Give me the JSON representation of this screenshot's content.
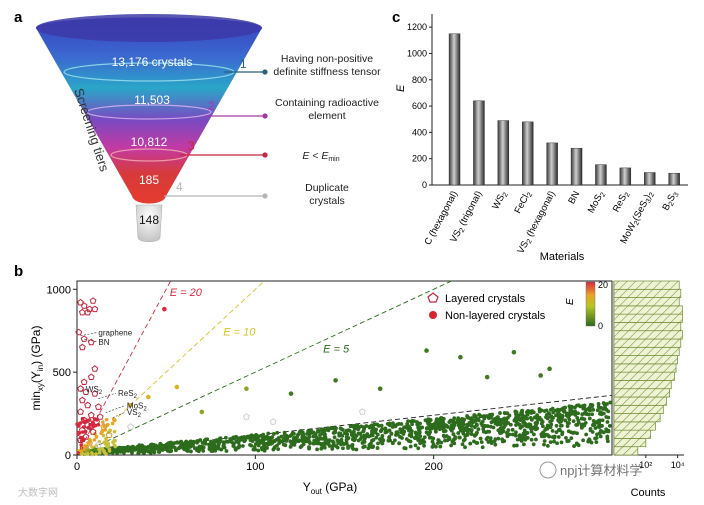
{
  "panel_labels": {
    "a": "a",
    "b": "b",
    "c": "c"
  },
  "funnel": {
    "axis_label": "Screening tiers",
    "tiers": [
      {
        "count": "13,176 crystals",
        "num": "1",
        "desc": [
          "Having non-positive",
          "definite stiffness tensor"
        ],
        "color": "#2c5f7c"
      },
      {
        "count": "11,503",
        "num": "2",
        "desc": [
          "Containing radioactive",
          "element"
        ],
        "color": "#a23aa8"
      },
      {
        "count": "10,812",
        "num": "3",
        "desc": [
          "E < E",
          "min"
        ],
        "color": "#c3273d"
      },
      {
        "count": "185",
        "num": "4",
        "desc": [
          "Duplicate",
          "crystals"
        ],
        "color": "#b5b5b5"
      }
    ],
    "final_count": "148"
  },
  "chart_data": [
    {
      "type": "bar",
      "panel": "c",
      "categories": [
        "C (hexagonal)",
        "VS2 (trigonal)",
        "WS2",
        "FeCl2",
        "VS2 (hexagonal)",
        "BN",
        "MoS2",
        "ReS2",
        "MoW2(SeS3)2",
        "B2S3"
      ],
      "category_labels": [
        {
          "main": "C (hexagonal)"
        },
        {
          "main": "VS",
          "sub": "2",
          "rest": " (trigonal)"
        },
        {
          "main": "WS",
          "sub": "2"
        },
        {
          "main": "FeCl",
          "sub": "2"
        },
        {
          "main": "VS",
          "sub": "2",
          "rest": " (hexagonal)"
        },
        {
          "main": "BN"
        },
        {
          "main": "MoS",
          "sub": "2"
        },
        {
          "main": "ReS",
          "sub": "2"
        },
        {
          "main": "MoW",
          "sub": "2",
          "rest": "(SeS",
          "sub2": "3",
          "rest2": ")",
          "sub3": "2"
        },
        {
          "main": "B",
          "sub": "2",
          "rest": "S",
          "sub2": "3"
        }
      ],
      "values": [
        1150,
        640,
        490,
        480,
        320,
        280,
        155,
        130,
        95,
        90
      ],
      "xlabel": "Materials",
      "ylabel": "E",
      "ylim": [
        0,
        1300
      ],
      "yticks": [
        0,
        200,
        400,
        600,
        800,
        1000,
        1200
      ]
    },
    {
      "type": "scatter",
      "panel": "b",
      "xlabel_main": "Y",
      "xlabel_sub": "out",
      "xlabel_rest": " (GPa)",
      "ylabel_main": "min",
      "ylabel_sub1": "xy",
      "ylabel_mid": "(Y",
      "ylabel_sub2": "in",
      "ylabel_rest": ") (GPa)",
      "xlim": [
        0,
        300
      ],
      "ylim": [
        0,
        1050
      ],
      "xticks": [
        0,
        100,
        200
      ],
      "yticks": [
        0,
        500,
        1000
      ],
      "reference_lines": [
        {
          "label": "E = 20",
          "slope": 20,
          "color": "#d8293f"
        },
        {
          "label": "E = 10",
          "slope": 10,
          "color": "#d6c224"
        },
        {
          "label": "E = 5",
          "slope": 5,
          "color": "#2d6b1d"
        },
        {
          "label": "",
          "slope": 1.2,
          "color": "#222222"
        }
      ],
      "legend": {
        "layered": "Layered crystals",
        "nonlayered": "Non-layered crystals"
      },
      "colorbar": {
        "label": "E",
        "ticks": [
          "20",
          "0"
        ]
      },
      "annotations": [
        "graphene",
        "BN",
        "WS",
        "ReS",
        "MoS",
        "VS"
      ],
      "annotation_subs": [
        "",
        "",
        "2",
        "2",
        "2",
        "2"
      ],
      "layered_points": [
        {
          "x": 2,
          "y": 920
        },
        {
          "x": 4,
          "y": 900
        },
        {
          "x": 6,
          "y": 860
        },
        {
          "x": 7,
          "y": 880
        },
        {
          "x": 3,
          "y": 860
        },
        {
          "x": 9,
          "y": 930
        },
        {
          "x": 10,
          "y": 880
        },
        {
          "x": 1,
          "y": 740
        },
        {
          "x": 4,
          "y": 700
        },
        {
          "x": 8,
          "y": 680
        },
        {
          "x": 3,
          "y": 650
        },
        {
          "x": 10,
          "y": 520
        },
        {
          "x": 8,
          "y": 470
        },
        {
          "x": 4,
          "y": 440
        },
        {
          "x": 2,
          "y": 400
        },
        {
          "x": 5,
          "y": 380
        },
        {
          "x": 10,
          "y": 370
        },
        {
          "x": 3,
          "y": 330
        },
        {
          "x": 6,
          "y": 300
        },
        {
          "x": 12,
          "y": 290
        },
        {
          "x": 2,
          "y": 260
        },
        {
          "x": 8,
          "y": 240
        },
        {
          "x": 13,
          "y": 230
        },
        {
          "x": 4,
          "y": 210
        },
        {
          "x": 11,
          "y": 200
        },
        {
          "x": 6,
          "y": 180
        },
        {
          "x": 15,
          "y": 170
        },
        {
          "x": 3,
          "y": 150
        },
        {
          "x": 9,
          "y": 140
        },
        {
          "x": 5,
          "y": 110
        },
        {
          "x": 2,
          "y": 90
        },
        {
          "x": 7,
          "y": 70
        },
        {
          "x": 18,
          "y": 120
        },
        {
          "x": 12,
          "y": 60
        },
        {
          "x": 4,
          "y": 40
        },
        {
          "x": 30,
          "y": 170
        },
        {
          "x": 95,
          "y": 230
        },
        {
          "x": 160,
          "y": 260
        },
        {
          "x": 110,
          "y": 200
        }
      ],
      "nonlayered_points": [
        {
          "x": 49,
          "y": 880,
          "e": 18
        },
        {
          "x": 56,
          "y": 410,
          "e": 9
        },
        {
          "x": 145,
          "y": 450,
          "e": 4
        },
        {
          "x": 196,
          "y": 630,
          "e": 4
        },
        {
          "x": 215,
          "y": 590,
          "e": 3
        },
        {
          "x": 245,
          "y": 620,
          "e": 3
        },
        {
          "x": 265,
          "y": 520,
          "e": 2
        },
        {
          "x": 260,
          "y": 480,
          "e": 2
        },
        {
          "x": 230,
          "y": 470,
          "e": 2
        },
        {
          "x": 120,
          "y": 370,
          "e": 4
        },
        {
          "x": 95,
          "y": 400,
          "e": 5
        },
        {
          "x": 170,
          "y": 400,
          "e": 3
        },
        {
          "x": 40,
          "y": 350,
          "e": 9
        },
        {
          "x": 30,
          "y": 300,
          "e": 11
        },
        {
          "x": 70,
          "y": 260,
          "e": 5
        }
      ],
      "histogram": {
        "xlabel": "Counts",
        "xticks": [
          "10²",
          "10⁴"
        ],
        "bin_step": 50,
        "counts_log": [
          1.5,
          2.0,
          2.3,
          2.6,
          2.9,
          3.1,
          3.3,
          3.5,
          3.6,
          3.8,
          3.9,
          4.0,
          4.1,
          4.2,
          4.3,
          4.2,
          4.3,
          4.3,
          4.1,
          4.2,
          4.1
        ]
      }
    }
  ],
  "watermark": {
    "left": "大数字网",
    "right": "npj计算材料学"
  }
}
